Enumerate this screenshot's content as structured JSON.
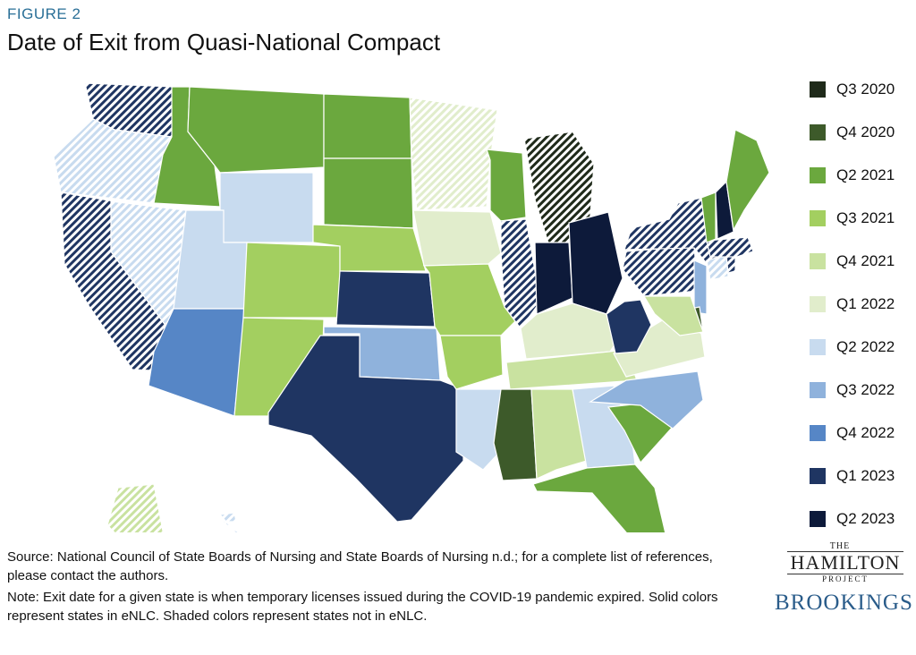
{
  "figure_label": "FIGURE 2",
  "title": "Date of Exit from Quasi-National Compact",
  "legend": [
    {
      "label": "Q3 2020",
      "color": "#1f2a1a"
    },
    {
      "label": "Q4 2020",
      "color": "#3d5a2a"
    },
    {
      "label": "Q2 2021",
      "color": "#6ba83e"
    },
    {
      "label": "Q3 2021",
      "color": "#a3cf60"
    },
    {
      "label": "Q4 2021",
      "color": "#c9e2a0"
    },
    {
      "label": "Q1 2022",
      "color": "#e1edcc"
    },
    {
      "label": "Q2 2022",
      "color": "#c8dbef"
    },
    {
      "label": "Q3 2022",
      "color": "#8fb2dc"
    },
    {
      "label": "Q4 2022",
      "color": "#5686c6"
    },
    {
      "label": "Q1 2023",
      "color": "#1f3562"
    },
    {
      "label": "Q2 2023",
      "color": "#0d1a3a"
    }
  ],
  "states": [
    {
      "name": "WA",
      "category": "Q1 2023",
      "enlc": false
    },
    {
      "name": "OR",
      "category": "Q2 2022",
      "enlc": false
    },
    {
      "name": "CA",
      "category": "Q1 2023",
      "enlc": false
    },
    {
      "name": "NV",
      "category": "Q2 2022",
      "enlc": false
    },
    {
      "name": "ID",
      "category": "Q2 2021",
      "enlc": true
    },
    {
      "name": "MT",
      "category": "Q2 2021",
      "enlc": true
    },
    {
      "name": "WY",
      "category": "Q2 2022",
      "enlc": true
    },
    {
      "name": "UT",
      "category": "Q2 2022",
      "enlc": true
    },
    {
      "name": "AZ",
      "category": "Q4 2022",
      "enlc": true
    },
    {
      "name": "CO",
      "category": "Q3 2021",
      "enlc": true
    },
    {
      "name": "NM",
      "category": "Q3 2021",
      "enlc": true
    },
    {
      "name": "ND",
      "category": "Q2 2021",
      "enlc": true
    },
    {
      "name": "SD",
      "category": "Q2 2021",
      "enlc": true
    },
    {
      "name": "NE",
      "category": "Q3 2021",
      "enlc": true
    },
    {
      "name": "KS",
      "category": "Q1 2023",
      "enlc": true
    },
    {
      "name": "OK",
      "category": "Q3 2022",
      "enlc": true
    },
    {
      "name": "TX",
      "category": "Q1 2023",
      "enlc": true
    },
    {
      "name": "MN",
      "category": "Q1 2022",
      "enlc": false
    },
    {
      "name": "IA",
      "category": "Q1 2022",
      "enlc": true
    },
    {
      "name": "MO",
      "category": "Q3 2021",
      "enlc": true
    },
    {
      "name": "AR",
      "category": "Q3 2021",
      "enlc": true
    },
    {
      "name": "LA",
      "category": "Q2 2022",
      "enlc": true
    },
    {
      "name": "WI",
      "category": "Q2 2021",
      "enlc": true
    },
    {
      "name": "IL",
      "category": "Q1 2023",
      "enlc": false
    },
    {
      "name": "MI",
      "category": "Q3 2020",
      "enlc": false
    },
    {
      "name": "IN",
      "category": "Q2 2023",
      "enlc": true
    },
    {
      "name": "OH",
      "category": "Q2 2023",
      "enlc": true
    },
    {
      "name": "KY",
      "category": "Q1 2022",
      "enlc": true
    },
    {
      "name": "TN",
      "category": "Q4 2021",
      "enlc": true
    },
    {
      "name": "MS",
      "category": "Q4 2020",
      "enlc": true
    },
    {
      "name": "AL",
      "category": "Q4 2021",
      "enlc": true
    },
    {
      "name": "GA",
      "category": "Q2 2022",
      "enlc": true
    },
    {
      "name": "FL",
      "category": "Q2 2021",
      "enlc": true
    },
    {
      "name": "SC",
      "category": "Q2 2021",
      "enlc": true
    },
    {
      "name": "NC",
      "category": "Q3 2022",
      "enlc": true
    },
    {
      "name": "VA",
      "category": "Q1 2022",
      "enlc": true
    },
    {
      "name": "WV",
      "category": "Q1 2023",
      "enlc": true
    },
    {
      "name": "PA",
      "category": "Q1 2023",
      "enlc": false
    },
    {
      "name": "NY",
      "category": "Q1 2023",
      "enlc": false
    },
    {
      "name": "NJ",
      "category": "Q3 2022",
      "enlc": true
    },
    {
      "name": "DE",
      "category": "Q4 2020",
      "enlc": true
    },
    {
      "name": "MD",
      "category": "Q4 2021",
      "enlc": true
    },
    {
      "name": "CT",
      "category": "Q2 2022",
      "enlc": false
    },
    {
      "name": "RI",
      "category": "Q1 2023",
      "enlc": false
    },
    {
      "name": "MA",
      "category": "Q1 2023",
      "enlc": false
    },
    {
      "name": "VT",
      "category": "Q2 2021",
      "enlc": true
    },
    {
      "name": "NH",
      "category": "Q2 2023",
      "enlc": true
    },
    {
      "name": "ME",
      "category": "Q2 2021",
      "enlc": true
    },
    {
      "name": "AK",
      "category": "Q4 2021",
      "enlc": false
    },
    {
      "name": "HI",
      "category": "Q2 2022",
      "enlc": false
    }
  ],
  "source": "Source: National Council of State Boards of Nursing and State Boards of Nursing n.d.; for a complete list of references, please contact the authors.",
  "note": "Note: Exit date for a given state is when temporary licenses issued during the COVID-19 pandemic expired. Solid colors represent states in eNLC. Shaded colors represent states not in eNLC.",
  "logo": {
    "hamilton_the": "THE",
    "hamilton_name": "HAMILTON",
    "hamilton_project": "PROJECT",
    "brookings": "BROOKINGS"
  }
}
